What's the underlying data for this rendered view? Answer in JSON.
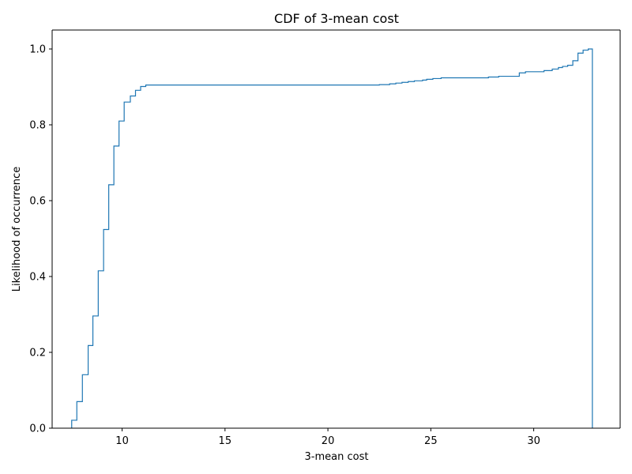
{
  "chart_data": {
    "type": "line",
    "subtype": "step-cdf",
    "title": "CDF of 3-mean cost",
    "xlabel": "3-mean cost",
    "ylabel": "Likelihood of occurrence",
    "xlim": [
      6.6,
      34.2
    ],
    "ylim": [
      0.0,
      1.05
    ],
    "xticks": [
      10,
      15,
      20,
      25,
      30
    ],
    "xtick_labels": [
      "10",
      "15",
      "20",
      "25",
      "30"
    ],
    "yticks": [
      0.0,
      0.2,
      0.4,
      0.6,
      0.8,
      1.0
    ],
    "ytick_labels": [
      "0.0",
      "0.2",
      "0.4",
      "0.6",
      "0.8",
      "1.0"
    ],
    "grid": false,
    "series": [
      {
        "color": "#1f77b4",
        "points": [
          [
            7.55,
            0.0
          ],
          [
            7.55,
            0.021
          ],
          [
            7.8,
            0.021
          ],
          [
            7.8,
            0.07
          ],
          [
            8.07,
            0.07
          ],
          [
            8.07,
            0.141
          ],
          [
            8.35,
            0.141
          ],
          [
            8.35,
            0.218
          ],
          [
            8.58,
            0.218
          ],
          [
            8.58,
            0.296
          ],
          [
            8.84,
            0.296
          ],
          [
            8.84,
            0.415
          ],
          [
            9.1,
            0.415
          ],
          [
            9.1,
            0.524
          ],
          [
            9.35,
            0.524
          ],
          [
            9.35,
            0.642
          ],
          [
            9.6,
            0.642
          ],
          [
            9.6,
            0.744
          ],
          [
            9.85,
            0.744
          ],
          [
            9.85,
            0.81
          ],
          [
            10.1,
            0.81
          ],
          [
            10.1,
            0.86
          ],
          [
            10.4,
            0.86
          ],
          [
            10.4,
            0.876
          ],
          [
            10.65,
            0.876
          ],
          [
            10.65,
            0.891
          ],
          [
            10.9,
            0.891
          ],
          [
            10.9,
            0.901
          ],
          [
            11.15,
            0.901
          ],
          [
            11.15,
            0.905
          ],
          [
            22.5,
            0.905
          ],
          [
            22.5,
            0.906
          ],
          [
            23.0,
            0.906
          ],
          [
            23.0,
            0.908
          ],
          [
            23.3,
            0.908
          ],
          [
            23.3,
            0.91
          ],
          [
            23.6,
            0.91
          ],
          [
            23.6,
            0.912
          ],
          [
            23.9,
            0.912
          ],
          [
            23.9,
            0.914
          ],
          [
            24.2,
            0.914
          ],
          [
            24.2,
            0.916
          ],
          [
            24.6,
            0.916
          ],
          [
            24.6,
            0.918
          ],
          [
            24.8,
            0.918
          ],
          [
            24.8,
            0.92
          ],
          [
            25.1,
            0.92
          ],
          [
            25.1,
            0.922
          ],
          [
            25.5,
            0.922
          ],
          [
            25.5,
            0.924
          ],
          [
            27.8,
            0.924
          ],
          [
            27.8,
            0.926
          ],
          [
            28.3,
            0.926
          ],
          [
            28.3,
            0.928
          ],
          [
            29.3,
            0.928
          ],
          [
            29.3,
            0.937
          ],
          [
            29.6,
            0.937
          ],
          [
            29.6,
            0.94
          ],
          [
            30.5,
            0.94
          ],
          [
            30.5,
            0.943
          ],
          [
            30.9,
            0.943
          ],
          [
            30.9,
            0.947
          ],
          [
            31.2,
            0.947
          ],
          [
            31.2,
            0.951
          ],
          [
            31.4,
            0.951
          ],
          [
            31.4,
            0.954
          ],
          [
            31.65,
            0.954
          ],
          [
            31.65,
            0.957
          ],
          [
            31.9,
            0.957
          ],
          [
            31.9,
            0.969
          ],
          [
            32.15,
            0.969
          ],
          [
            32.15,
            0.989
          ],
          [
            32.4,
            0.989
          ],
          [
            32.4,
            0.997
          ],
          [
            32.65,
            0.997
          ],
          [
            32.65,
            1.0
          ],
          [
            32.85,
            1.0
          ],
          [
            32.85,
            0.0
          ]
        ]
      }
    ]
  }
}
